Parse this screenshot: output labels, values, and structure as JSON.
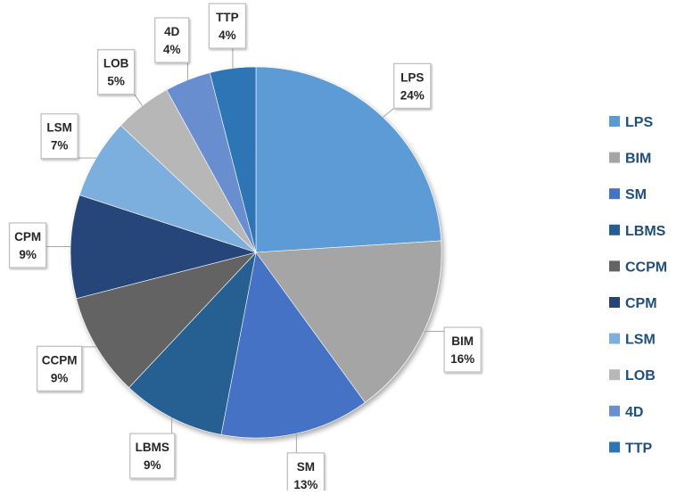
{
  "chart_data": {
    "type": "pie",
    "title": "",
    "legend_position": "right",
    "data_label_format": "category and percent",
    "slices": [
      {
        "label": "LPS",
        "value": 24,
        "display": "24%",
        "color": "#5b9bd5"
      },
      {
        "label": "BIM",
        "value": 16,
        "display": "16%",
        "color": "#a5a5a5"
      },
      {
        "label": "SM",
        "value": 13,
        "display": "13%",
        "color": "#4472c4"
      },
      {
        "label": "LBMS",
        "value": 9,
        "display": "9%",
        "color": "#255e91"
      },
      {
        "label": "CCPM",
        "value": 9,
        "display": "9%",
        "color": "#636363"
      },
      {
        "label": "CPM",
        "value": 9,
        "display": "9%",
        "color": "#264478"
      },
      {
        "label": "LSM",
        "value": 7,
        "display": "7%",
        "color": "#7cafdd"
      },
      {
        "label": "LOB",
        "value": 5,
        "display": "5%",
        "color": "#b7b7b7"
      },
      {
        "label": "4D",
        "value": 4,
        "display": "4%",
        "color": "#698ed0"
      },
      {
        "label": "TTP",
        "value": 4,
        "display": "4%",
        "color": "#2e75b6"
      }
    ]
  }
}
